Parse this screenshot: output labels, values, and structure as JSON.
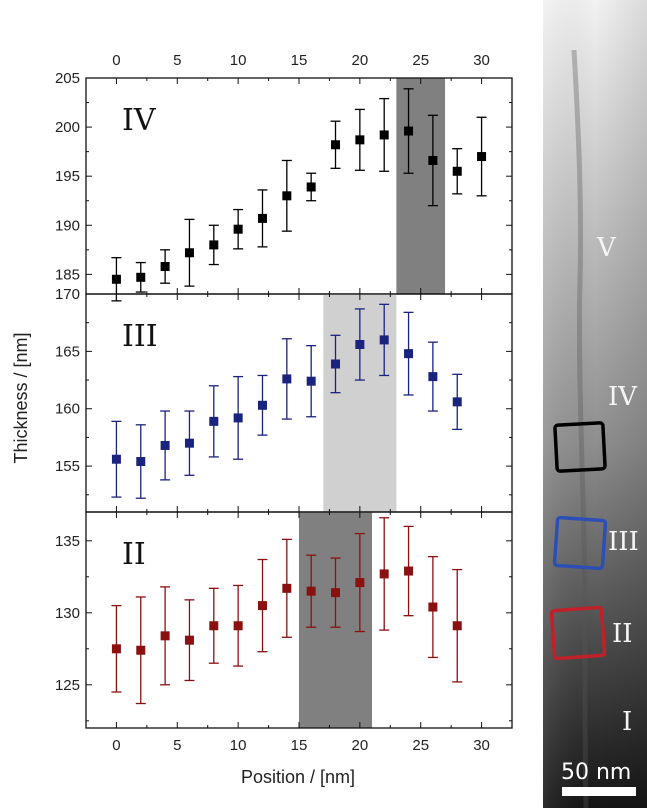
{
  "chart_data": {
    "type": "scatter",
    "xlabel": "Position / [nm]",
    "ylabel": "Thickness / [nm]",
    "xlim": [
      -2.5,
      32.5
    ],
    "x_ticks": [
      0,
      5,
      10,
      15,
      20,
      25,
      30
    ],
    "panels": [
      {
        "label": "IV",
        "color": "#000000",
        "ylim": [
          183,
          205
        ],
        "y_ticks": [
          185,
          190,
          195,
          200,
          205
        ],
        "highlight": {
          "x0": 23,
          "x1": 27,
          "color": "#808080"
        },
        "points": [
          {
            "x": 0,
            "y": 184.5,
            "err": 2.2
          },
          {
            "x": 2,
            "y": 184.7,
            "err": 1.5
          },
          {
            "x": 4,
            "y": 185.8,
            "err": 1.7
          },
          {
            "x": 6,
            "y": 187.2,
            "err": 3.4
          },
          {
            "x": 8,
            "y": 188.0,
            "err": 2.0
          },
          {
            "x": 10,
            "y": 189.6,
            "err": 2.0
          },
          {
            "x": 12,
            "y": 190.7,
            "err": 2.9
          },
          {
            "x": 14,
            "y": 193.0,
            "err": 3.6
          },
          {
            "x": 16,
            "y": 193.9,
            "err": 1.4
          },
          {
            "x": 18,
            "y": 198.2,
            "err": 2.4
          },
          {
            "x": 20,
            "y": 198.7,
            "err": 3.1
          },
          {
            "x": 22,
            "y": 199.2,
            "err": 3.7
          },
          {
            "x": 24,
            "y": 199.6,
            "err": 4.3
          },
          {
            "x": 26,
            "y": 196.6,
            "err": 4.6
          },
          {
            "x": 28,
            "y": 195.5,
            "err": 2.3
          },
          {
            "x": 30,
            "y": 197.0,
            "err": 4.0
          }
        ]
      },
      {
        "label": "III",
        "color": "#1a237e",
        "ylim": [
          151,
          170
        ],
        "y_ticks": [
          155,
          160,
          165,
          170
        ],
        "highlight": {
          "x0": 17,
          "x1": 23,
          "color": "#d0d0d0"
        },
        "points": [
          {
            "x": 0,
            "y": 155.6,
            "err": 3.3
          },
          {
            "x": 2,
            "y": 155.4,
            "err": 3.2
          },
          {
            "x": 4,
            "y": 156.8,
            "err": 3.0
          },
          {
            "x": 6,
            "y": 157.0,
            "err": 2.8
          },
          {
            "x": 8,
            "y": 158.9,
            "err": 3.1
          },
          {
            "x": 10,
            "y": 159.2,
            "err": 3.6
          },
          {
            "x": 12,
            "y": 160.3,
            "err": 2.6
          },
          {
            "x": 14,
            "y": 162.6,
            "err": 3.5
          },
          {
            "x": 16,
            "y": 162.4,
            "err": 3.1
          },
          {
            "x": 18,
            "y": 163.9,
            "err": 2.5
          },
          {
            "x": 20,
            "y": 165.6,
            "err": 3.1
          },
          {
            "x": 22,
            "y": 166.0,
            "err": 3.1
          },
          {
            "x": 24,
            "y": 164.8,
            "err": 3.6
          },
          {
            "x": 26,
            "y": 162.8,
            "err": 3.0
          },
          {
            "x": 28,
            "y": 160.6,
            "err": 2.4
          }
        ]
      },
      {
        "label": "II",
        "color": "#8b1010",
        "ylim": [
          122,
          137
        ],
        "y_ticks": [
          125,
          130,
          135
        ],
        "highlight": {
          "x0": 15,
          "x1": 21,
          "color": "#808080"
        },
        "points": [
          {
            "x": 0,
            "y": 127.5,
            "err": 3.0
          },
          {
            "x": 2,
            "y": 127.4,
            "err": 3.7
          },
          {
            "x": 4,
            "y": 128.4,
            "err": 3.4
          },
          {
            "x": 6,
            "y": 128.1,
            "err": 2.8
          },
          {
            "x": 8,
            "y": 129.1,
            "err": 2.6
          },
          {
            "x": 10,
            "y": 129.1,
            "err": 2.8
          },
          {
            "x": 12,
            "y": 130.5,
            "err": 3.2
          },
          {
            "x": 14,
            "y": 131.7,
            "err": 3.4
          },
          {
            "x": 16,
            "y": 131.5,
            "err": 2.5
          },
          {
            "x": 18,
            "y": 131.4,
            "err": 2.4
          },
          {
            "x": 20,
            "y": 132.1,
            "err": 3.4
          },
          {
            "x": 22,
            "y": 132.7,
            "err": 3.9
          },
          {
            "x": 24,
            "y": 132.9,
            "err": 3.1
          },
          {
            "x": 26,
            "y": 130.4,
            "err": 3.5
          },
          {
            "x": 28,
            "y": 129.1,
            "err": 3.9
          }
        ]
      }
    ]
  },
  "micrograph": {
    "region_labels": [
      "V",
      "IV",
      "III",
      "II",
      "I"
    ],
    "boxes": [
      {
        "name": "black-region-box",
        "color": "#000000"
      },
      {
        "name": "blue-region-box",
        "color": "#2c4fb5"
      },
      {
        "name": "red-region-box",
        "color": "#c0202a"
      }
    ],
    "scale_bar_label": "50 nm"
  }
}
